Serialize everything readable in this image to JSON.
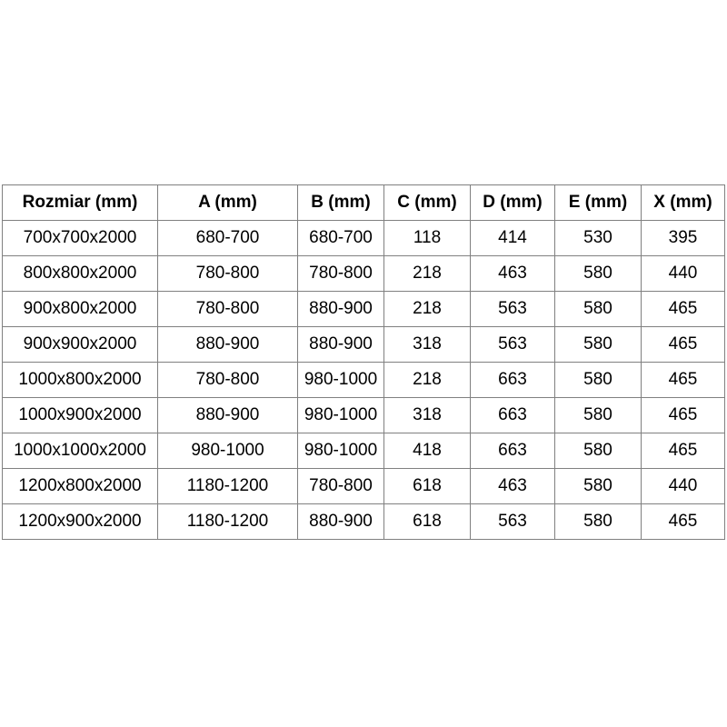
{
  "chart_data": {
    "type": "table",
    "title": "",
    "columns": [
      "Rozmiar (mm)",
      "A (mm)",
      "B (mm)",
      "C (mm)",
      "D (mm)",
      "E (mm)",
      "X (mm)"
    ],
    "rows": [
      [
        "700x700x2000",
        "680-700",
        "680-700",
        "118",
        "414",
        "530",
        "395"
      ],
      [
        "800x800x2000",
        "780-800",
        "780-800",
        "218",
        "463",
        "580",
        "440"
      ],
      [
        "900x800x2000",
        "780-800",
        "880-900",
        "218",
        "563",
        "580",
        "465"
      ],
      [
        "900x900x2000",
        "880-900",
        "880-900",
        "318",
        "563",
        "580",
        "465"
      ],
      [
        "1000x800x2000",
        "780-800",
        "980-1000",
        "218",
        "663",
        "580",
        "465"
      ],
      [
        "1000x900x2000",
        "880-900",
        "980-1000",
        "318",
        "663",
        "580",
        "465"
      ],
      [
        "1000x1000x2000",
        "980-1000",
        "980-1000",
        "418",
        "663",
        "580",
        "465"
      ],
      [
        "1200x800x2000",
        "1180-1200",
        "780-800",
        "618",
        "463",
        "580",
        "440"
      ],
      [
        "1200x900x2000",
        "1180-1200",
        "880-900",
        "618",
        "563",
        "580",
        "465"
      ]
    ],
    "layout": {
      "grid": "on",
      "header_style": "bold"
    }
  },
  "colors": {
    "border": "#808080",
    "text": "#000000",
    "background": "#ffffff"
  }
}
